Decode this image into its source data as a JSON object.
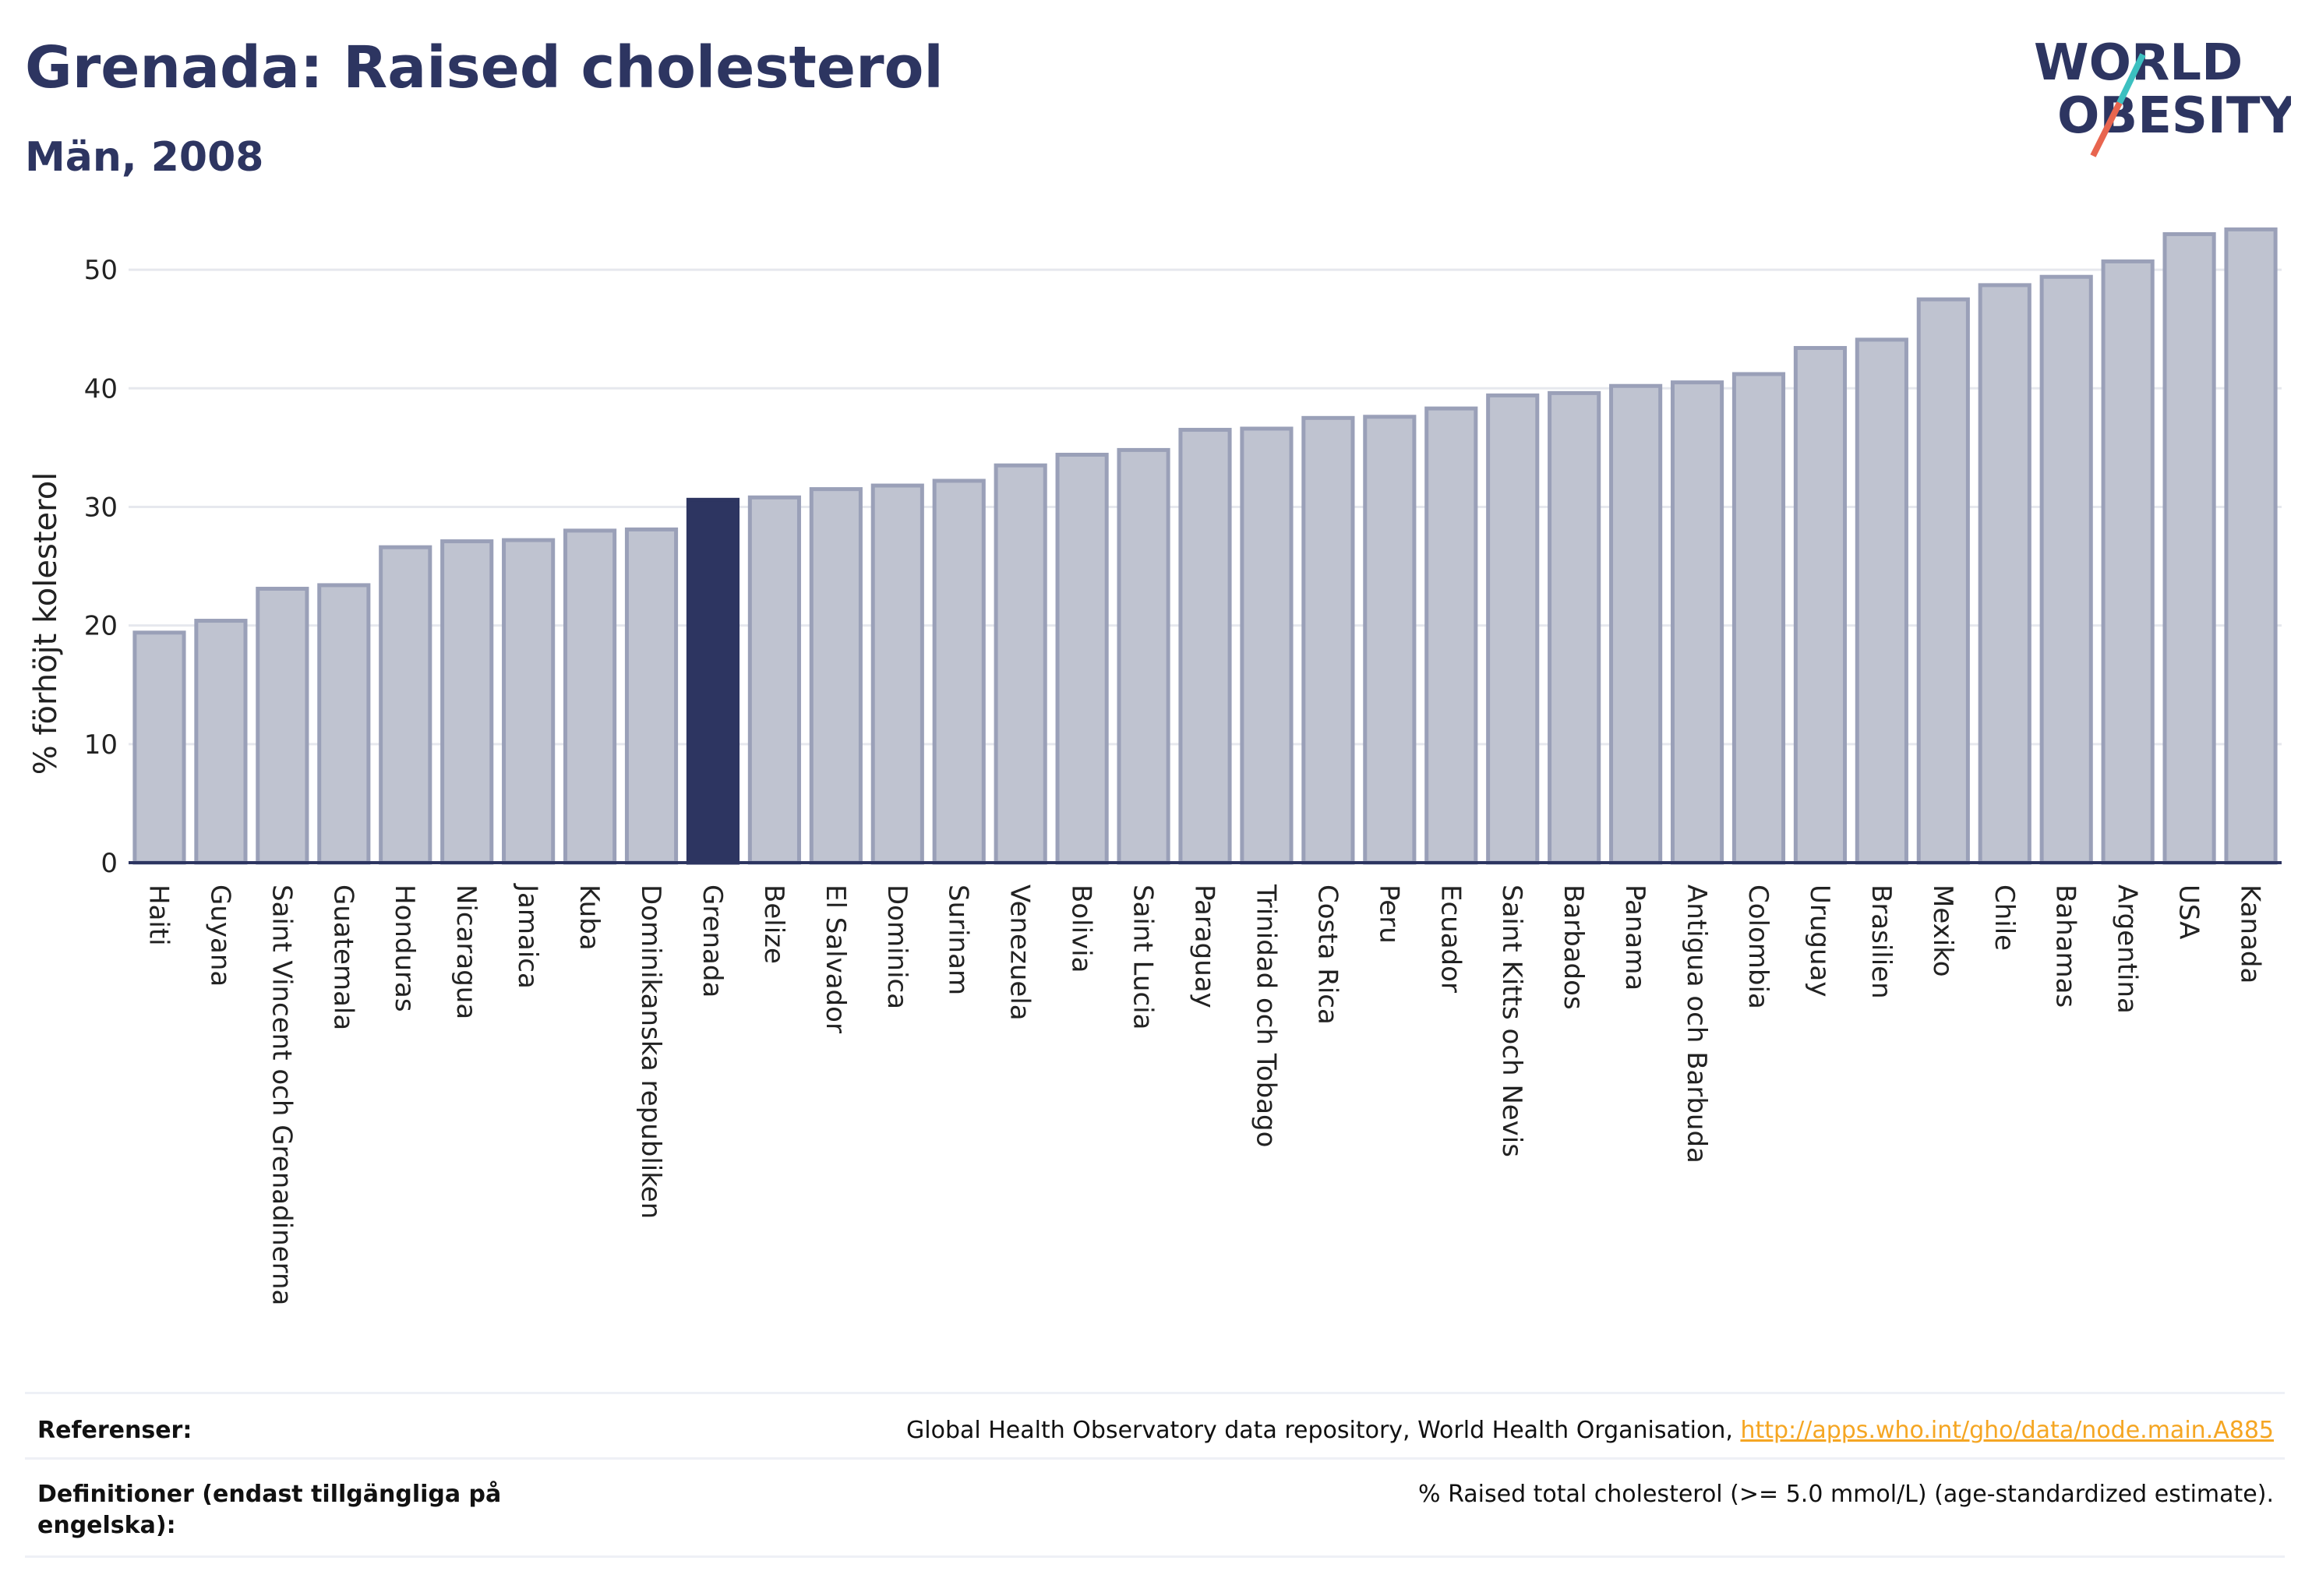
{
  "header": {
    "title": "Grenada: Raised cholesterol",
    "subtitle": "Män, 2008"
  },
  "logo": {
    "line1": "WORLD",
    "line2": "OBESITY",
    "colors": {
      "text": "#2d3561",
      "accent_teal": "#3cc0c0",
      "accent_red": "#e8654f"
    }
  },
  "chart_data": {
    "type": "bar",
    "title": "Grenada: Raised cholesterol",
    "subtitle": "Män, 2008",
    "xlabel": "",
    "ylabel": "% förhöjt kolesterol",
    "ylim": [
      0,
      55
    ],
    "yticks": [
      0,
      10,
      20,
      30,
      40,
      50
    ],
    "grid": true,
    "highlight": "Grenada",
    "colors": {
      "bar": "#bfc3d0",
      "bar_stroke": "#9aa0b8",
      "highlight": "#2d3561",
      "grid": "#e6e8ee",
      "axis": "#2d3561"
    },
    "categories": [
      "Haiti",
      "Guyana",
      "Saint Vincent och Grenadinerna",
      "Guatemala",
      "Honduras",
      "Nicaragua",
      "Jamaica",
      "Kuba",
      "Dominikanska republiken",
      "Grenada",
      "Belize",
      "El Salvador",
      "Dominica",
      "Surinam",
      "Venezuela",
      "Bolivia",
      "Saint Lucia",
      "Paraguay",
      "Trinidad och Tobago",
      "Costa Rica",
      "Peru",
      "Ecuador",
      "Saint Kitts och Nevis",
      "Barbados",
      "Panama",
      "Antigua och Barbuda",
      "Colombia",
      "Uruguay",
      "Brasilien",
      "Mexiko",
      "Chile",
      "Bahamas",
      "Argentina",
      "USA",
      "Kanada"
    ],
    "values": [
      19.4,
      20.4,
      23.1,
      23.4,
      26.6,
      27.1,
      27.2,
      28.0,
      28.1,
      30.6,
      30.8,
      31.5,
      31.8,
      32.2,
      33.5,
      34.4,
      34.8,
      36.5,
      36.6,
      37.5,
      37.6,
      38.3,
      39.4,
      39.6,
      40.2,
      40.5,
      41.2,
      43.4,
      44.1,
      47.5,
      48.7,
      49.4,
      50.7,
      53.0,
      53.4
    ]
  },
  "footer": {
    "references_label": "Referenser:",
    "references_text": "Global Health Observatory data repository, World Health Organisation, ",
    "references_link": "http://apps.who.int/gho/data/node.main.A885",
    "definitions_label": "Definitioner (endast tillgängliga på engelska):",
    "definitions_text": "% Raised total cholesterol (>= 5.0 mmol/L) (age-standardized estimate)."
  }
}
